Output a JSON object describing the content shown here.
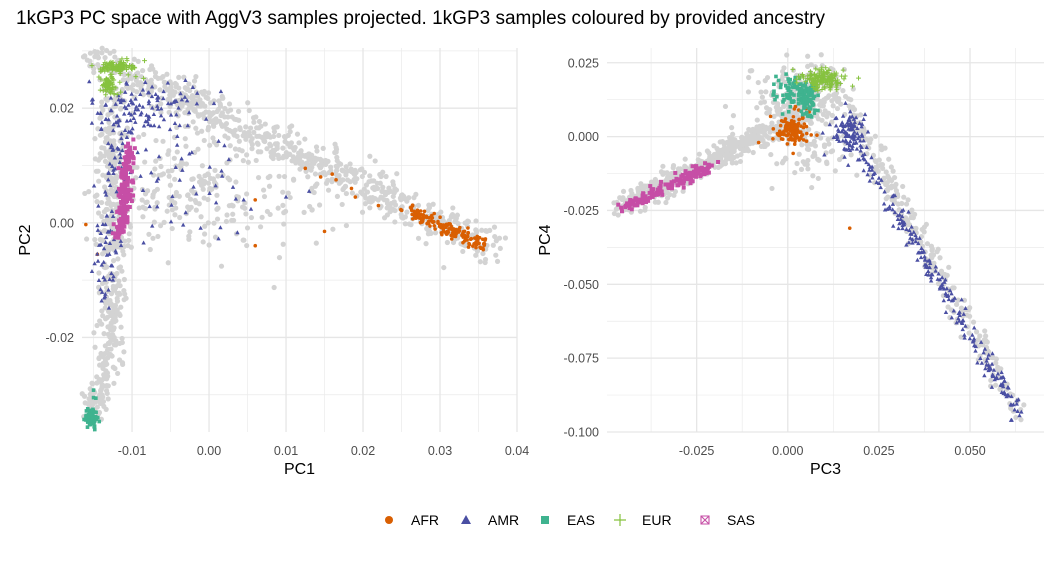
{
  "title": "1kGP3 PC space with AggV3 samples projected. 1kGP3 samples coloured by provided ancestry",
  "legend": {
    "position": "bottom",
    "items": [
      {
        "label": "AFR",
        "color": "#d95f02",
        "shape": "circle"
      },
      {
        "label": "AMR",
        "color": "#4a4fa3",
        "shape": "triangle"
      },
      {
        "label": "EAS",
        "color": "#3fb38f",
        "shape": "square"
      },
      {
        "label": "EUR",
        "color": "#86c23f",
        "shape": "plus"
      },
      {
        "label": "SAS",
        "color": "#c64ea6",
        "shape": "square-x"
      }
    ]
  },
  "projected_color": "#d3d3d3",
  "chart_data": [
    {
      "type": "scatter",
      "xlabel": "PC1",
      "ylabel": "PC2",
      "xlim": [
        -0.0165,
        0.04
      ],
      "ylim": [
        -0.0365,
        0.0305
      ],
      "x_ticks": [
        -0.01,
        0.0,
        0.01,
        0.02,
        0.03,
        0.04
      ],
      "x_tick_labels": [
        "-0.01",
        "0.00",
        "0.01",
        "0.02",
        "0.03",
        "0.04"
      ],
      "x_minor": [
        -0.015,
        -0.005,
        0.005,
        0.015,
        0.025,
        0.035
      ],
      "y_ticks": [
        -0.02,
        0.0,
        0.02
      ],
      "y_tick_labels": [
        "-0.02",
        "0.00",
        "0.02"
      ],
      "y_minor": [
        -0.03,
        -0.01,
        0.01,
        0.03
      ],
      "grid": true,
      "series": [
        {
          "name": "AggV3 projected",
          "group": "projected",
          "clusters": [
            {
              "type": "segment",
              "from": [
                -0.0155,
                0.0295
              ],
              "to": [
                0.0365,
                -0.0045
              ],
              "n": 700,
              "spread": 0.0016
            },
            {
              "type": "segment",
              "from": [
                -0.0125,
                0.023
              ],
              "to": [
                -0.0125,
                -0.02
              ],
              "n": 320,
              "spread": 0.001
            },
            {
              "type": "segment",
              "from": [
                -0.0125,
                -0.02
              ],
              "to": [
                -0.0155,
                -0.0345
              ],
              "n": 120,
              "spread": 0.0008
            },
            {
              "type": "blob",
              "center": [
                -0.004,
                0.006
              ],
              "sd": [
                0.006,
                0.006
              ],
              "n": 180
            },
            {
              "type": "blob",
              "center": [
                0.005,
                0.005
              ],
              "sd": [
                0.007,
                0.0045
              ],
              "n": 90
            }
          ]
        },
        {
          "name": "AFR",
          "group": "AFR",
          "clusters": [
            {
              "type": "segment",
              "from": [
                0.026,
                0.002
              ],
              "to": [
                0.036,
                -0.004
              ],
              "n": 160,
              "spread": 0.0006
            },
            {
              "type": "scatter-list",
              "points": [
                [
                  0.0125,
                  0.0095
                ],
                [
                  0.0145,
                  0.008
                ],
                [
                  0.016,
                  0.0085
                ],
                [
                  0.0165,
                  0.0075
                ],
                [
                  0.0185,
                  0.006
                ],
                [
                  0.006,
                  0.004
                ],
                [
                  0.006,
                  -0.004
                ],
                [
                  0.015,
                  -0.0015
                ],
                [
                  -0.0145,
                  -0.0055
                ],
                [
                  -0.016,
                  -0.0003
                ],
                [
                  0.019,
                  0.0045
                ],
                [
                  0.022,
                  0.003
                ]
              ]
            }
          ]
        },
        {
          "name": "AMR",
          "group": "AMR",
          "clusters": [
            {
              "type": "blob",
              "center": [
                -0.0085,
                0.02
              ],
              "sd": [
                0.0035,
                0.0025
              ],
              "n": 120
            },
            {
              "type": "segment",
              "from": [
                -0.012,
                0.018
              ],
              "to": [
                -0.014,
                -0.014
              ],
              "n": 80,
              "spread": 0.0008
            },
            {
              "type": "blob",
              "center": [
                -0.004,
                0.008
              ],
              "sd": [
                0.005,
                0.005
              ],
              "n": 55
            },
            {
              "type": "scatter-list",
              "points": [
                [
                  0.0045,
                  0.004
                ],
                [
                  0.013,
                  0.0055
                ],
                [
                  0.01,
                  0.0045
                ],
                [
                  -0.0085,
                  -0.0035
                ]
              ]
            }
          ]
        },
        {
          "name": "EAS",
          "group": "EAS",
          "clusters": [
            {
              "type": "blob",
              "center": [
                -0.0153,
                -0.034
              ],
              "sd": [
                0.0004,
                0.0008
              ],
              "n": 90
            },
            {
              "type": "scatter-list",
              "points": [
                [
                  -0.015,
                  -0.0292
                ],
                [
                  -0.015,
                  -0.0305
                ],
                [
                  -0.0147,
                  -0.0306
                ]
              ]
            }
          ]
        },
        {
          "name": "EUR",
          "group": "EUR",
          "clusters": [
            {
              "type": "blob",
              "center": [
                -0.012,
                0.0272
              ],
              "sd": [
                0.001,
                0.0005
              ],
              "n": 110
            },
            {
              "type": "blob",
              "center": [
                -0.013,
                0.024
              ],
              "sd": [
                0.0006,
                0.0009
              ],
              "n": 70
            },
            {
              "type": "scatter-list",
              "points": [
                [
                  -0.0095,
                  0.0255
                ],
                [
                  -0.0085,
                  0.0252
                ],
                [
                  -0.0105,
                  0.0258
                ]
              ]
            }
          ]
        },
        {
          "name": "SAS",
          "group": "SAS",
          "clusters": [
            {
              "type": "segment",
              "from": [
                -0.0103,
                0.014
              ],
              "to": [
                -0.0115,
                -0.002
              ],
              "n": 170,
              "spread": 0.0004
            }
          ]
        }
      ]
    },
    {
      "type": "scatter",
      "xlabel": "PC3",
      "ylabel": "PC4",
      "xlim": [
        -0.0496,
        0.0703
      ],
      "ylim": [
        -0.1,
        0.03
      ],
      "x_ticks": [
        -0.025,
        0.0,
        0.025,
        0.05
      ],
      "x_tick_labels": [
        "-0.025",
        "0.000",
        "0.025",
        "0.050"
      ],
      "x_minor": [
        -0.0375,
        -0.0125,
        0.0125,
        0.0375,
        0.0625
      ],
      "y_ticks": [
        -0.1,
        -0.075,
        -0.05,
        -0.025,
        0.0,
        0.025
      ],
      "y_tick_labels": [
        "-0.100",
        "-0.075",
        "-0.050",
        "-0.025",
        "0.000",
        "0.025"
      ],
      "y_minor": [
        -0.0875,
        -0.0625,
        -0.0375,
        -0.0125,
        0.0125
      ],
      "grid": true,
      "series": [
        {
          "name": "AggV3 projected",
          "group": "projected",
          "clusters": [
            {
              "type": "segment",
              "from": [
                -0.046,
                -0.024
              ],
              "to": [
                0.005,
                0.008
              ],
              "n": 520,
              "spread": 0.0018
            },
            {
              "type": "blob",
              "center": [
                0.004,
                0.012
              ],
              "sd": [
                0.006,
                0.006
              ],
              "n": 220
            },
            {
              "type": "segment",
              "from": [
                0.01,
                0.023
              ],
              "to": [
                0.064,
                -0.095
              ],
              "n": 260,
              "spread": 0.0015
            },
            {
              "type": "blob",
              "center": [
                0.006,
                -0.006
              ],
              "sd": [
                0.006,
                0.005
              ],
              "n": 60
            }
          ]
        },
        {
          "name": "AFR",
          "group": "AFR",
          "clusters": [
            {
              "type": "blob",
              "center": [
                0.001,
                0.002
              ],
              "sd": [
                0.002,
                0.0025
              ],
              "n": 110
            },
            {
              "type": "scatter-list",
              "points": [
                [
                  -0.008,
                  -0.002
                ],
                [
                  0.017,
                  -0.031
                ],
                [
                  0.003,
                  0.009
                ],
                [
                  0.005,
                  0.0095
                ],
                [
                  0.008,
                  0.0005
                ]
              ]
            }
          ]
        },
        {
          "name": "AMR",
          "group": "AMR",
          "clusters": [
            {
              "type": "segment",
              "from": [
                0.015,
                0.005
              ],
              "to": [
                0.064,
                -0.095
              ],
              "n": 240,
              "spread": 0.0012
            },
            {
              "type": "blob",
              "center": [
                0.017,
                0.002
              ],
              "sd": [
                0.0025,
                0.004
              ],
              "n": 80
            }
          ]
        },
        {
          "name": "EAS",
          "group": "EAS",
          "clusters": [
            {
              "type": "blob",
              "center": [
                0.003,
                0.015
              ],
              "sd": [
                0.0025,
                0.0025
              ],
              "n": 110
            },
            {
              "type": "blob",
              "center": [
                0.0055,
                0.011
              ],
              "sd": [
                0.0012,
                0.0025
              ],
              "n": 40
            },
            {
              "type": "scatter-list",
              "points": [
                [
                  -0.0025,
                  0.019
                ],
                [
                  -0.0035,
                  0.0125
                ],
                [
                  -0.003,
                  0.0135
                ]
              ]
            }
          ]
        },
        {
          "name": "EUR",
          "group": "EUR",
          "clusters": [
            {
              "type": "blob",
              "center": [
                0.0095,
                0.0195
              ],
              "sd": [
                0.003,
                0.0018
              ],
              "n": 150
            }
          ]
        },
        {
          "name": "SAS",
          "group": "SAS",
          "clusters": [
            {
              "type": "segment",
              "from": [
                -0.045,
                -0.024
              ],
              "to": [
                -0.021,
                -0.01
              ],
              "n": 170,
              "spread": 0.001
            }
          ]
        }
      ]
    }
  ]
}
